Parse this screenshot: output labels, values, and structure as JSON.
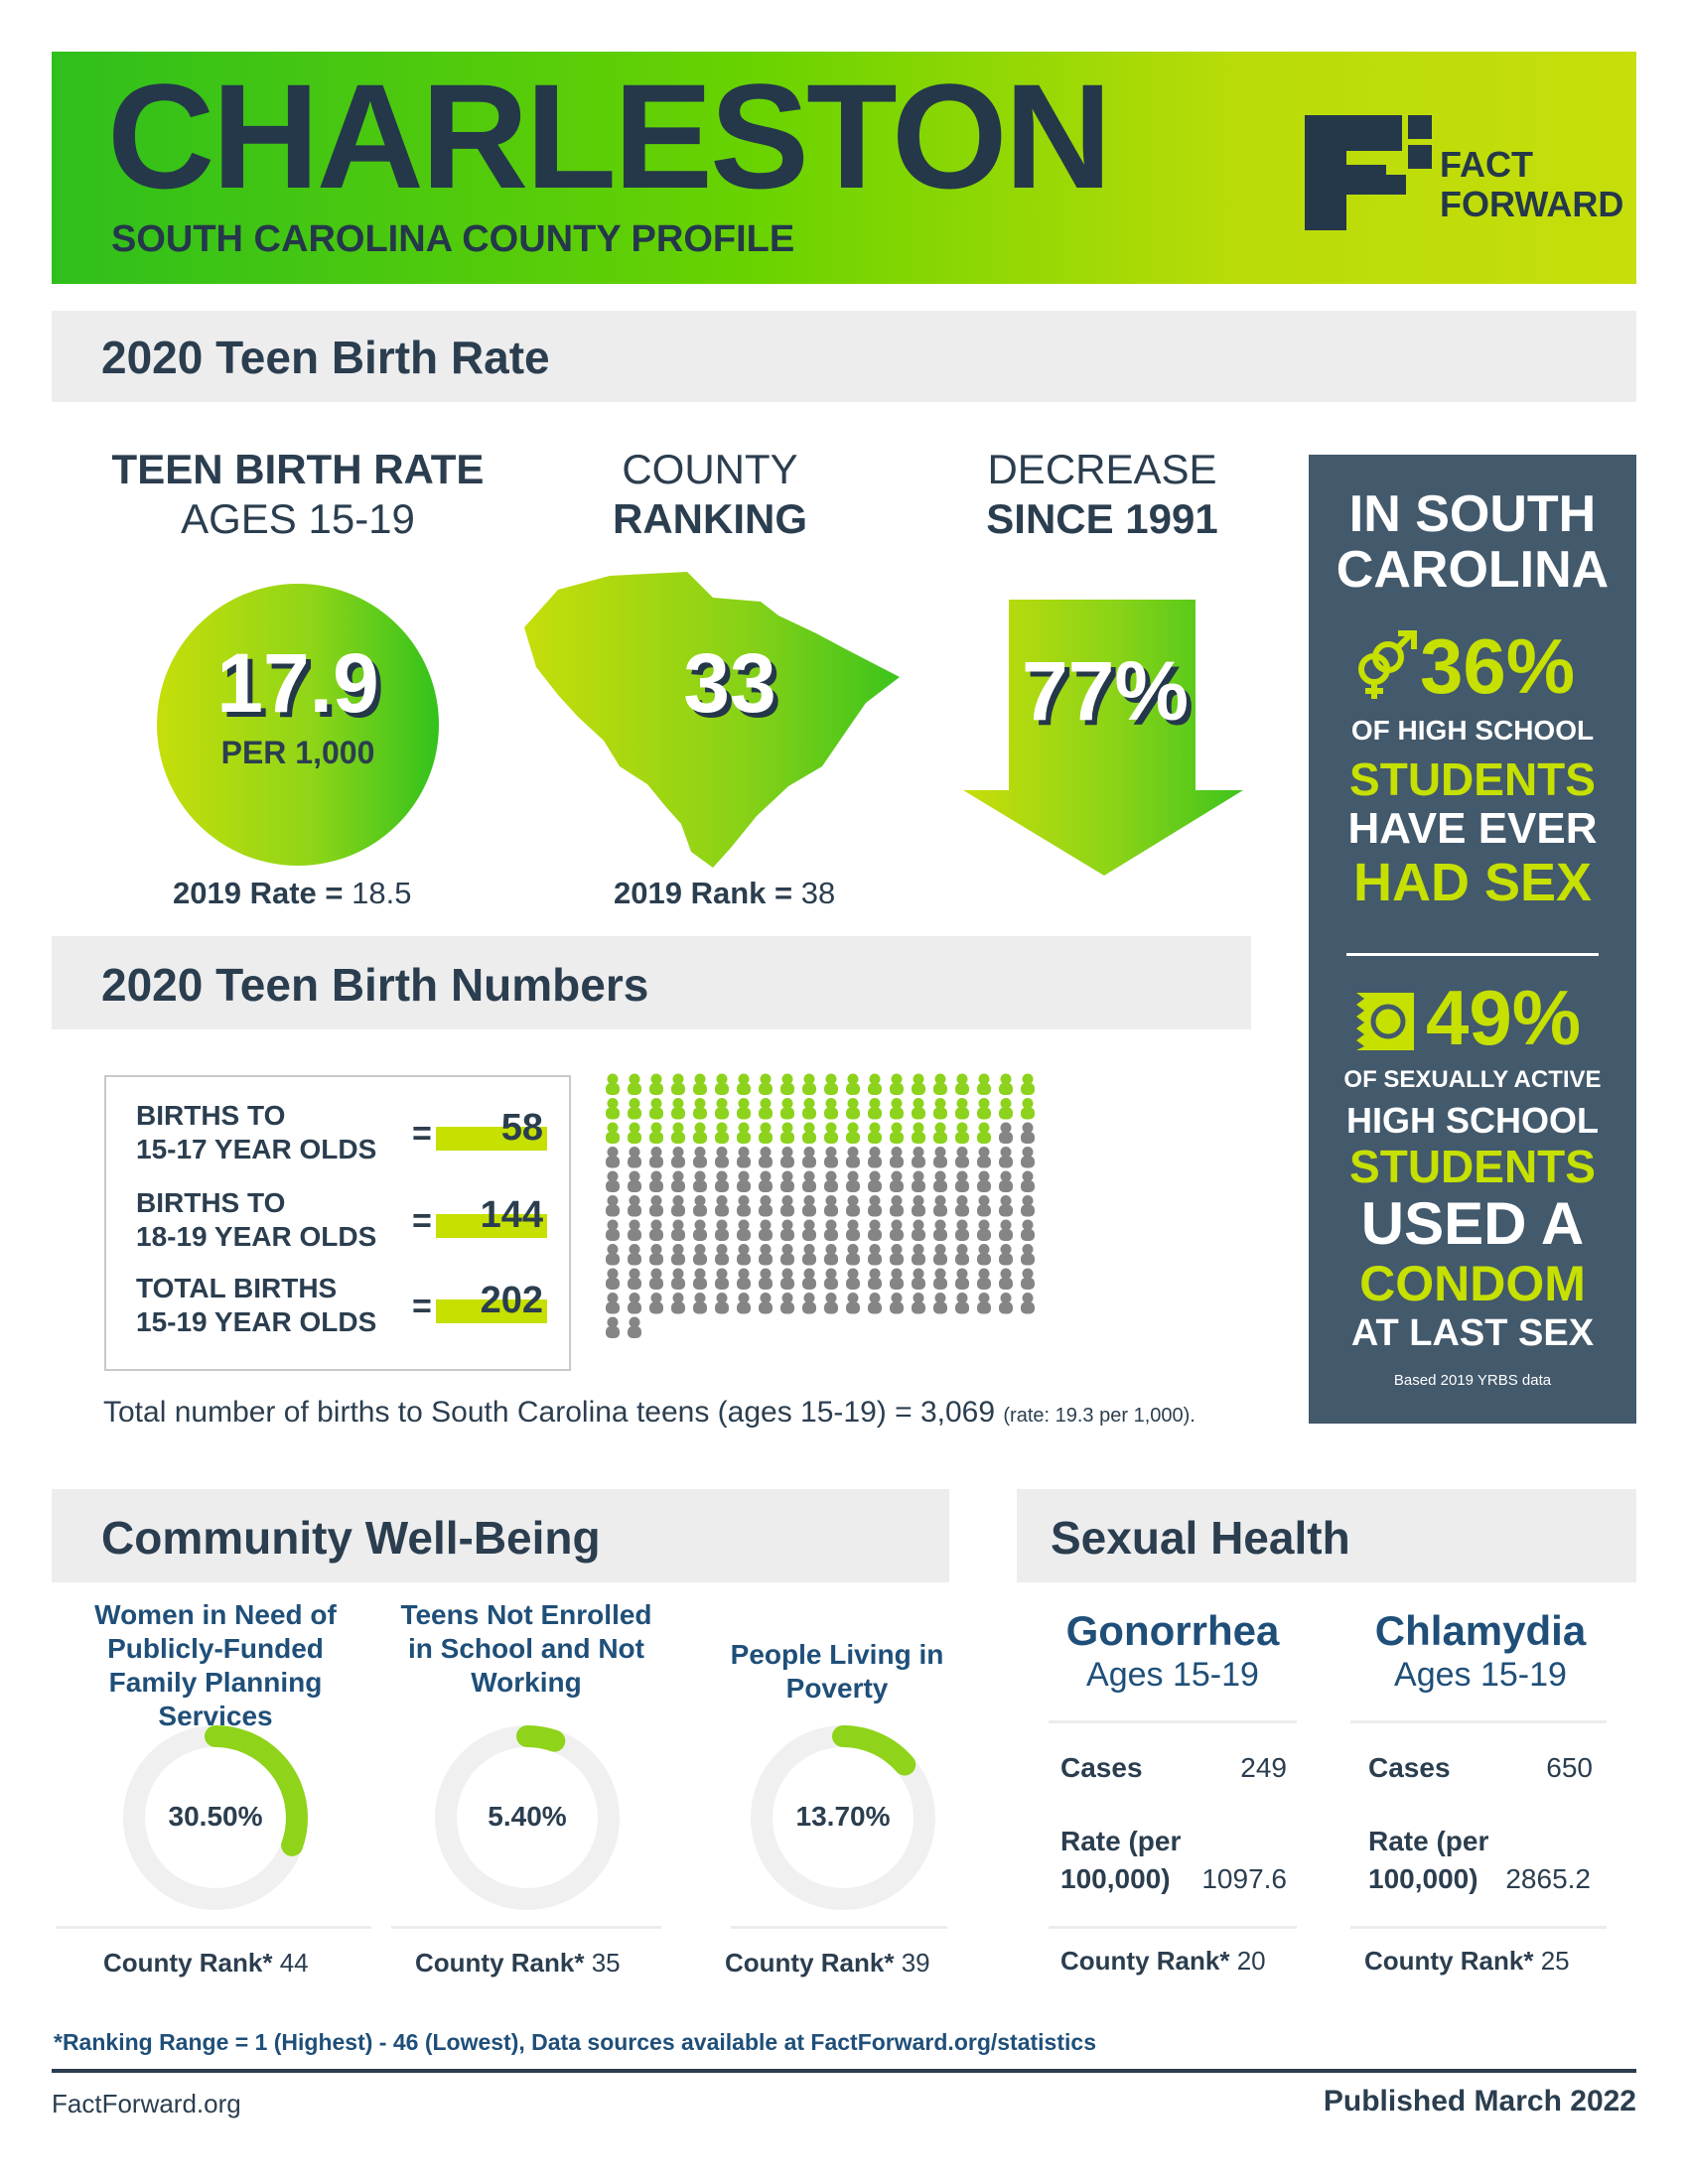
{
  "header": {
    "title": "CHARLESTON",
    "subtitle": "SOUTH CAROLINA COUNTY PROFILE",
    "logo_line1": "FACT",
    "logo_line2": "FORWARD"
  },
  "teen_birth_rate": {
    "section_title": "2020 Teen Birth Rate",
    "rate_heading_1": "TEEN BIRTH RATE",
    "rate_heading_2": "AGES 15-19",
    "rate_value": "17.9",
    "rate_unit": "PER 1,000",
    "prior_rate_label": "2019 Rate =",
    "prior_rate_value": "18.5",
    "ranking_heading_1": "COUNTY",
    "ranking_heading_2": "RANKING",
    "ranking_value": "33",
    "prior_rank_label": "2019 Rank =",
    "prior_rank_value": "38",
    "decrease_heading_1": "DECREASE",
    "decrease_heading_2": "SINCE 1991",
    "decrease_value": "77%"
  },
  "south_carolina_panel": {
    "heading_1": "IN SOUTH",
    "heading_2": "CAROLINA",
    "stat1_value": "36%",
    "stat1_line1": "OF HIGH SCHOOL",
    "stat1_line2": "STUDENTS",
    "stat1_line3": "HAVE EVER",
    "stat1_line4": "HAD SEX",
    "stat2_value": "49%",
    "stat2_line1": "OF SEXUALLY ACTIVE",
    "stat2_line2": "HIGH SCHOOL",
    "stat2_line3": "STUDENTS",
    "stat2_line4": "USED A",
    "stat2_line5": "CONDOM",
    "stat2_line6": "AT LAST SEX",
    "source": "Based 2019 YRBS data",
    "icon1": "gender-symbols-icon",
    "icon2": "condom-icon"
  },
  "teen_birth_numbers": {
    "section_title": "2020 Teen Birth Numbers",
    "rows": [
      {
        "label_1": "BIRTHS TO",
        "label_2": "15-17 YEAR OLDS",
        "eq": "=",
        "value": "58"
      },
      {
        "label_1": "BIRTHS TO",
        "label_2": "18-19 YEAR OLDS",
        "eq": "=",
        "value": "144"
      },
      {
        "label_1": "TOTAL BIRTHS",
        "label_2": "15-19 YEAR OLDS",
        "eq": "=",
        "value": "202"
      }
    ],
    "pictogram": {
      "green_count": 58,
      "gray_count": 144,
      "per_row": 20,
      "green_color": "#8dd21c",
      "gray_color": "#858585"
    },
    "state_total_text": "Total number of births to South Carolina teens (ages 15-19) = 3,069",
    "state_rate_text": "(rate: 19.3 per 1,000)."
  },
  "community": {
    "section_title": "Community Well-Being",
    "items": [
      {
        "label": "Women in Need of Publicly-Funded Family Planning Services",
        "value": "30.50%",
        "fraction": 0.305,
        "rank_label": "County Rank*",
        "rank_value": "44"
      },
      {
        "label": "Teens Not Enrolled in School and Not Working",
        "value": "5.40%",
        "fraction": 0.054,
        "rank_label": "County Rank*",
        "rank_value": "35"
      },
      {
        "label": "People Living in Poverty",
        "value": "13.70%",
        "fraction": 0.137,
        "rank_label": "County Rank*",
        "rank_value": "39"
      }
    ],
    "ring_color": "#8fd31a",
    "ring_track_color": "#f0f0f0"
  },
  "sexual_health": {
    "section_title": "Sexual Health",
    "diseases": [
      {
        "name": "Gonorrhea",
        "ages": "Ages 15-19",
        "cases_label": "Cases",
        "cases": "249",
        "rate_label_1": "Rate (per",
        "rate_label_2": "100,000)",
        "rate": "1097.6",
        "rank_label": "County Rank*",
        "rank": "20"
      },
      {
        "name": "Chlamydia",
        "ages": "Ages 15-19",
        "cases_label": "Cases",
        "cases": "650",
        "rate_label_1": "Rate (per",
        "rate_label_2": "100,000)",
        "rate": "2865.2",
        "rank_label": "County Rank*",
        "rank": "25"
      }
    ]
  },
  "footer": {
    "ranking_note": "*Ranking Range = 1 (Highest) - 46 (Lowest), Data sources available at FactForward.org/statistics",
    "website": "FactForward.org",
    "published": "Published March 2022"
  },
  "colors": {
    "navy": "#2b3e4f",
    "lime": "#c6e000",
    "panel": "#43596c",
    "bar": "#ededed"
  }
}
